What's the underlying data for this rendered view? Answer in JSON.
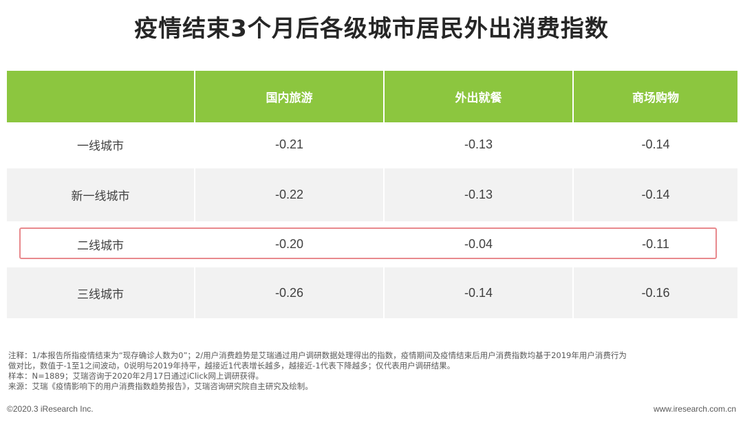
{
  "title": "疫情结束3个月后各级城市居民外出消费指数",
  "chart_data": {
    "type": "table",
    "columns": [
      "",
      "国内旅游",
      "外出就餐",
      "商场购物"
    ],
    "rows": [
      {
        "label": "一线城市",
        "values": [
          "-0.21",
          "-0.13",
          "-0.14"
        ]
      },
      {
        "label": "新一线城市",
        "values": [
          "-0.22",
          "-0.13",
          "-0.14"
        ]
      },
      {
        "label": "二线城市",
        "values": [
          "-0.20",
          "-0.04",
          "-0.11"
        ],
        "highlighted": true
      },
      {
        "label": "三线城市",
        "values": [
          "-0.26",
          "-0.14",
          "-0.16"
        ]
      }
    ],
    "header_color": "#8cc63f",
    "highlight_color": "#e8898d"
  },
  "notes": {
    "line1": "注释：1/本报告所指疫情结束为“现存确诊人数为0”；2/用户消费趋势是艾瑞通过用户调研数据处理得出的指数，疫情期间及疫情结束后用户消费指数均基于2019年用户消费行为",
    "line2": "做对比，数值于-1至1之间波动，0说明与2019年持平，越接近1代表增长越多，越接近-1代表下降越多；仅代表用户调研结果。",
    "line3": "样本：N=1889；艾瑞咨询于2020年2月17日通过iClick网上调研获得。",
    "line4": "来源：艾瑞《疫情影响下的用户消费指数趋势报告》，艾瑞咨询研究院自主研究及绘制。"
  },
  "footer": {
    "copyright": "©2020.3 iResearch Inc.",
    "website": "www.iresearch.com.cn"
  }
}
